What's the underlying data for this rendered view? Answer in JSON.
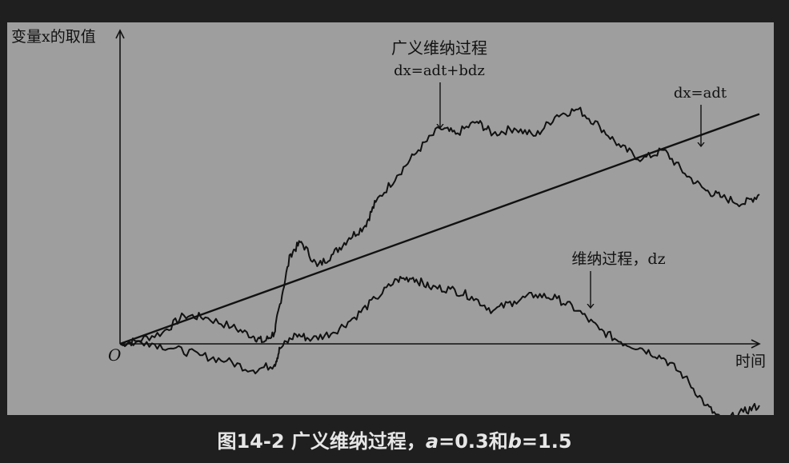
{
  "chart_data": {
    "type": "line",
    "xlabel": "时间",
    "ylabel": "变量x的取值",
    "origin_label": "O",
    "params": {
      "a": 0.3,
      "b": 1.5
    },
    "series": [
      {
        "name": "广义维纳过程",
        "formula": "dx=adt+bdz",
        "points": [
          [
            0,
            0
          ],
          [
            0.03,
            0.03
          ],
          [
            0.08,
            0.12
          ],
          [
            0.12,
            0.3
          ],
          [
            0.16,
            0.28
          ],
          [
            0.21,
            0.18
          ],
          [
            0.25,
            0.08
          ],
          [
            0.27,
            0.02
          ],
          [
            0.29,
            0.12
          ],
          [
            0.3,
            0.42
          ],
          [
            0.32,
            0.95
          ],
          [
            0.34,
            1.08
          ],
          [
            0.37,
            0.82
          ],
          [
            0.4,
            0.95
          ],
          [
            0.43,
            1.12
          ],
          [
            0.46,
            1.25
          ],
          [
            0.48,
            1.5
          ],
          [
            0.52,
            1.78
          ],
          [
            0.56,
            2.05
          ],
          [
            0.6,
            2.28
          ],
          [
            0.63,
            2.22
          ],
          [
            0.67,
            2.35
          ],
          [
            0.7,
            2.22
          ],
          [
            0.74,
            2.28
          ],
          [
            0.78,
            2.2
          ],
          [
            0.82,
            2.42
          ],
          [
            0.86,
            2.48
          ],
          [
            0.9,
            2.3
          ],
          [
            0.94,
            2.08
          ],
          [
            0.98,
            1.95
          ],
          [
            1.02,
            2.05
          ],
          [
            1.06,
            1.8
          ],
          [
            1.1,
            1.62
          ],
          [
            1.13,
            1.55
          ],
          [
            1.17,
            1.48
          ],
          [
            1.2,
            1.58
          ]
        ]
      },
      {
        "name": "dx=adt",
        "formula": "dx=adt",
        "points": [
          [
            0,
            0
          ],
          [
            1.2,
            2.43
          ]
        ]
      },
      {
        "name": "维纳过程，dz",
        "formula": "维纳过程，dz",
        "points": [
          [
            0,
            0
          ],
          [
            0.05,
            0.02
          ],
          [
            0.1,
            -0.05
          ],
          [
            0.15,
            -0.12
          ],
          [
            0.2,
            -0.18
          ],
          [
            0.25,
            -0.28
          ],
          [
            0.29,
            -0.22
          ],
          [
            0.3,
            -0.05
          ],
          [
            0.33,
            0.1
          ],
          [
            0.36,
            0.05
          ],
          [
            0.4,
            0.12
          ],
          [
            0.44,
            0.28
          ],
          [
            0.48,
            0.48
          ],
          [
            0.52,
            0.68
          ],
          [
            0.55,
            0.7
          ],
          [
            0.58,
            0.6
          ],
          [
            0.62,
            0.58
          ],
          [
            0.66,
            0.5
          ],
          [
            0.7,
            0.35
          ],
          [
            0.74,
            0.45
          ],
          [
            0.78,
            0.52
          ],
          [
            0.82,
            0.48
          ],
          [
            0.86,
            0.35
          ],
          [
            0.9,
            0.15
          ],
          [
            0.94,
            0.02
          ],
          [
            0.98,
            -0.05
          ],
          [
            1.02,
            -0.15
          ],
          [
            1.06,
            -0.35
          ],
          [
            1.1,
            -0.65
          ],
          [
            1.13,
            -0.82
          ],
          [
            1.17,
            -0.72
          ],
          [
            1.2,
            -0.65
          ]
        ]
      }
    ],
    "annotations": [
      {
        "text": "广义维纳过程",
        "target": "广义维纳过程"
      },
      {
        "text": "dx=adt+bdz",
        "target": "广义维纳过程"
      },
      {
        "text": "dx=adt",
        "target": "dx=adt"
      },
      {
        "text": "维纳过程，dz",
        "target": "维纳过程，dz"
      }
    ],
    "xlim": [
      0,
      1.2
    ],
    "ylim": [
      -0.85,
      2.9
    ],
    "grid": false,
    "legend": "none"
  },
  "caption": {
    "prefix": "图14-2 广义维纳过程，",
    "a_sym": "a",
    "a_val": "=0.3和",
    "b_sym": "b",
    "b_val": "=1.5"
  },
  "colors": {
    "background": "#1f1f1f",
    "plot_background": "#9e9e9e",
    "line": "#111111",
    "caption": "#e6e6e6"
  }
}
